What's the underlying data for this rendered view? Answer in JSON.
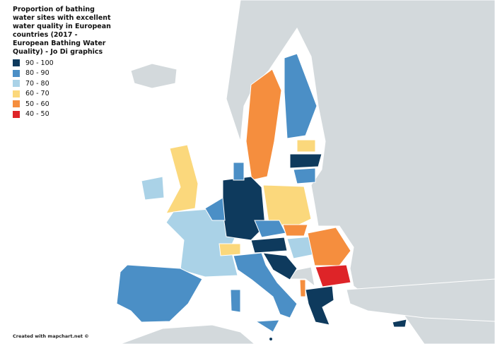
{
  "title": "Proportion of bathing water sites with excellent water quality in European countries (2017 - European Bathing Water Quality) - Jo Di graphics",
  "legend": [
    {
      "label": "90 - 100",
      "color": "#0e3a5d"
    },
    {
      "label": "80 - 90",
      "color": "#4b8fc6"
    },
    {
      "label": "70 - 80",
      "color": "#aad2e7"
    },
    {
      "label": "60 - 70",
      "color": "#fbd87c"
    },
    {
      "label": "50 - 60",
      "color": "#f58e3e"
    },
    {
      "label": "40 - 50",
      "color": "#de2428"
    }
  ],
  "credit": "Created with mapchart.net ©"
}
